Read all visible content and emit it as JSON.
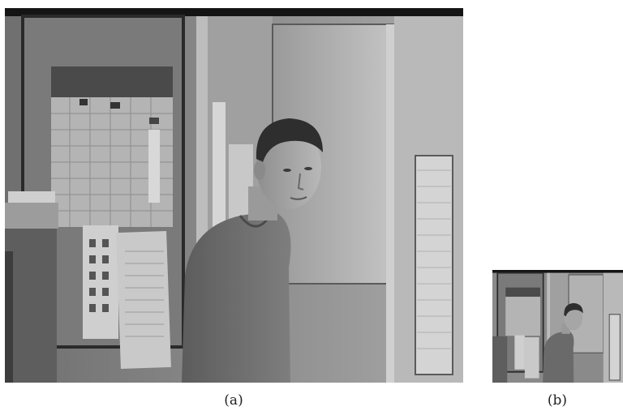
{
  "figure": {
    "panels": [
      {
        "id": "a",
        "caption": "(a)"
      },
      {
        "id": "b",
        "caption": "(b)"
      }
    ]
  }
}
